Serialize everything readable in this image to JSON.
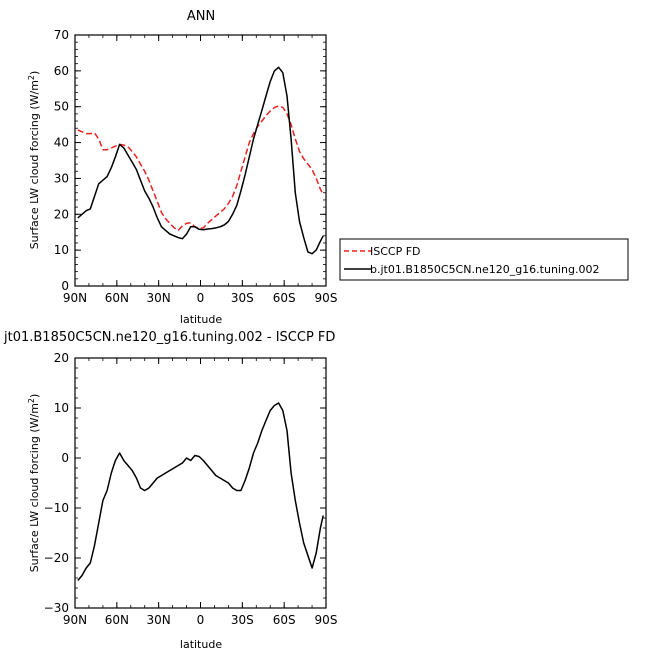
{
  "chart_data": [
    {
      "type": "line",
      "title": "ANN",
      "xlabel": "latitude",
      "ylabel": "Surface LW cloud forcing (W/m",
      "ylabel_sup": "2",
      "ylabel_close": ")",
      "ylim": [
        0,
        70
      ],
      "xlim": [
        90,
        -90
      ],
      "xticks": [
        90,
        60,
        30,
        0,
        -30,
        -60,
        -90
      ],
      "xtick_labels": [
        "90N",
        "60N",
        "30N",
        "0",
        "30S",
        "60S",
        "90S"
      ],
      "yticks": [
        0,
        10,
        20,
        30,
        40,
        50,
        60,
        70
      ],
      "ytick_labels": [
        "0",
        "10",
        "20",
        "30",
        "40",
        "50",
        "60",
        "70"
      ],
      "legend_position": "right",
      "series": [
        {
          "name": "ISCCP FD",
          "color": "#e8211f",
          "dash": "dashed",
          "x": [
            88,
            85,
            82,
            79,
            76,
            73,
            70,
            67,
            64,
            61,
            58,
            55,
            52,
            49,
            46,
            43,
            40,
            37,
            34,
            31,
            28,
            25,
            22,
            19,
            16,
            13,
            10,
            7,
            4,
            1,
            -2,
            -5,
            -8,
            -11,
            -14,
            -17,
            -20,
            -23,
            -26,
            -29,
            -32,
            -35,
            -38,
            -41,
            -44,
            -47,
            -50,
            -53,
            -56,
            -59,
            -62,
            -65,
            -68,
            -71,
            -74,
            -77,
            -80,
            -83,
            -86,
            -88
          ],
          "y": [
            43.5,
            43,
            42.5,
            42.5,
            42.7,
            41,
            38,
            38,
            38.5,
            39,
            39.5,
            39.3,
            38.8,
            37.5,
            36,
            34,
            32,
            29.5,
            26.5,
            23.5,
            20.5,
            18.8,
            17.5,
            16.3,
            15.5,
            16.8,
            17.5,
            17.6,
            16.5,
            16.1,
            16.2,
            17.5,
            18.5,
            19.5,
            20.5,
            21.5,
            23,
            25,
            28,
            32,
            36,
            40,
            42.5,
            44.5,
            46,
            47.5,
            48.8,
            49.8,
            50.2,
            49.8,
            48,
            45,
            41,
            37.5,
            35.5,
            34,
            32.5,
            30,
            27,
            25.5
          ]
        },
        {
          "name": "b.jt01.B1850C5CN.ne120_g16.tuning.002",
          "color": "#000000",
          "dash": "solid",
          "x": [
            88,
            85,
            82,
            79,
            76,
            73,
            70,
            67,
            64,
            61,
            58,
            55,
            52,
            49,
            46,
            43,
            40,
            37,
            34,
            31,
            28,
            25,
            22,
            19,
            16,
            13,
            10,
            7,
            4,
            1,
            -2,
            -5,
            -8,
            -11,
            -14,
            -17,
            -20,
            -23,
            -26,
            -29,
            -32,
            -35,
            -38,
            -41,
            -44,
            -47,
            -50,
            -53,
            -56,
            -59,
            -62,
            -65,
            -68,
            -71,
            -74,
            -77,
            -80,
            -83,
            -86,
            -88
          ],
          "y": [
            19,
            20,
            21,
            21.5,
            25,
            28.5,
            29.5,
            30.5,
            33,
            36,
            39.5,
            38.5,
            36.5,
            34.5,
            32.5,
            29.5,
            26.5,
            24.5,
            22,
            19,
            16.5,
            15.5,
            14.5,
            14,
            13.5,
            13.2,
            14.5,
            16.5,
            16.5,
            15.8,
            15.7,
            15.9,
            16,
            16.2,
            16.5,
            17,
            18,
            20,
            22.5,
            26.5,
            31,
            36,
            41,
            45,
            49,
            53,
            57,
            60,
            61,
            59.5,
            53,
            41,
            26,
            18,
            13.5,
            9.5,
            9,
            10,
            12.5,
            14
          ]
        }
      ]
    },
    {
      "type": "line",
      "title": "jt01.B1850C5CN.ne120_g16.tuning.002 - ISCCP FD",
      "xlabel": "latitude",
      "ylabel": "Surface LW cloud forcing (W/m",
      "ylabel_sup": "2",
      "ylabel_close": ")",
      "ylim": [
        -30,
        20
      ],
      "xlim": [
        90,
        -90
      ],
      "xticks": [
        90,
        60,
        30,
        0,
        -30,
        -60,
        -90
      ],
      "xtick_labels": [
        "90N",
        "60N",
        "30N",
        "0",
        "30S",
        "60S",
        "90S"
      ],
      "yticks": [
        -30,
        -20,
        -10,
        0,
        10,
        20
      ],
      "ytick_labels": [
        "−30",
        "−20",
        "−10",
        "0",
        "10",
        "20"
      ],
      "series": [
        {
          "color": "#000000",
          "dash": "solid",
          "x": [
            88,
            85,
            82,
            79,
            76,
            73,
            70,
            67,
            64,
            61,
            58,
            55,
            52,
            49,
            46,
            43,
            40,
            37,
            34,
            31,
            28,
            25,
            22,
            19,
            16,
            13,
            10,
            7,
            4,
            1,
            -2,
            -5,
            -8,
            -11,
            -14,
            -17,
            -20,
            -23,
            -26,
            -29,
            -32,
            -35,
            -38,
            -41,
            -44,
            -47,
            -50,
            -53,
            -56,
            -59,
            -62,
            -65,
            -68,
            -71,
            -74,
            -77,
            -80,
            -83,
            -86,
            -88
          ],
          "y": [
            -24.5,
            -23.5,
            -22,
            -21,
            -17.5,
            -13,
            -8.5,
            -6.5,
            -3,
            -0.5,
            1,
            -0.5,
            -1.5,
            -2.5,
            -4,
            -6,
            -6.5,
            -6,
            -5,
            -4,
            -3.5,
            -3,
            -2.5,
            -2,
            -1.5,
            -1,
            0,
            -0.5,
            0.5,
            0.3,
            -0.5,
            -1.5,
            -2.5,
            -3.5,
            -4,
            -4.5,
            -5,
            -6,
            -6.5,
            -6.5,
            -4.5,
            -2,
            1,
            3,
            5.5,
            7.5,
            9.5,
            10.5,
            11,
            9.5,
            5.5,
            -3,
            -8.5,
            -13,
            -17,
            -19.5,
            -22,
            -19,
            -14,
            -11.5
          ]
        }
      ]
    }
  ]
}
